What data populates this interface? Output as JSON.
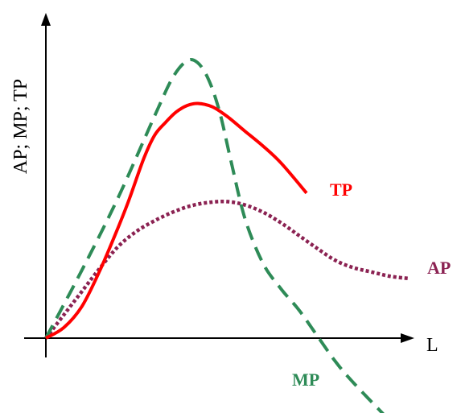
{
  "chart_data": {
    "type": "line",
    "title": "",
    "xlabel": "L",
    "ylabel": "AP; MP; TP",
    "grid": false,
    "legend": "none",
    "xlim": [
      0,
      10
    ],
    "ylim": [
      -2.1,
      7.2
    ],
    "series": [
      {
        "name": "TP",
        "color": "#ff0000",
        "style": "solid",
        "x": [
          0,
          0.5,
          1,
          1.5,
          2,
          2.3,
          2.7,
          3,
          3.3,
          3.6,
          3.9,
          4.2,
          4.6,
          5,
          5.5,
          6,
          6.5,
          7.2
        ],
        "y": [
          0,
          0.25,
          0.75,
          1.6,
          2.6,
          3.25,
          4.2,
          4.75,
          5.05,
          5.3,
          5.45,
          5.5,
          5.42,
          5.2,
          4.85,
          4.5,
          4.1,
          3.4
        ]
      },
      {
        "name": "AP",
        "color": "#8b2252",
        "style": "dotted",
        "x": [
          0,
          0.5,
          1,
          1.5,
          2,
          2.5,
          3,
          3.5,
          4,
          4.5,
          5,
          5.5,
          6,
          6.5,
          7,
          7.5,
          8,
          8.5,
          9,
          9.5,
          10
        ],
        "y": [
          0,
          0.55,
          1.1,
          1.65,
          2.15,
          2.5,
          2.75,
          2.95,
          3.1,
          3.18,
          3.2,
          3.12,
          2.95,
          2.7,
          2.4,
          2.1,
          1.82,
          1.65,
          1.55,
          1.45,
          1.4
        ]
      },
      {
        "name": "MP",
        "color": "#2e8b57",
        "style": "dashed",
        "x": [
          0,
          1,
          2,
          3,
          3.5,
          3.9,
          4.2,
          4.5,
          4.8,
          5.1,
          5.5,
          6,
          6.5,
          7,
          7.5,
          8,
          8.5,
          9.4
        ],
        "y": [
          0,
          1.6,
          3.3,
          5.2,
          6.1,
          6.5,
          6.45,
          6.05,
          5.3,
          4.2,
          2.8,
          1.75,
          1.15,
          0.65,
          0.05,
          -0.55,
          -1.05,
          -1.85
        ]
      }
    ]
  }
}
